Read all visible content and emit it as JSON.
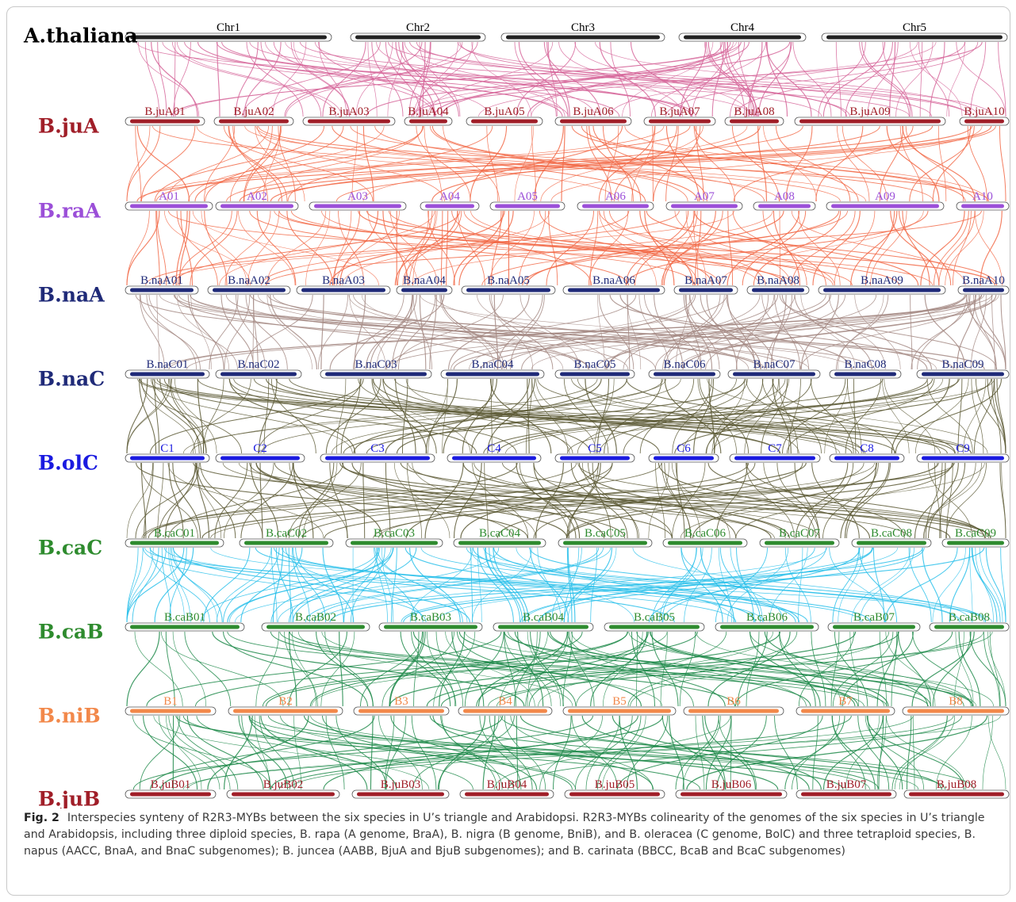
{
  "figure": {
    "caption_label": "Fig. 2",
    "caption_text": "Interspecies synteny of R2R3-MYBs between the six species in U’s triangle and Arabidopsi. R2R3-MYBs colinearity of the genomes of the six species in U’s triangle and Arabidopsis, including three diploid species, B. rapa (A genome, BraA), B. nigra (B genome, BniB), and B. oleracea (C genome, BolC) and three tetraploid species, B. napus (AACC, BnaA, and BnaC subgenomes); B. juncea (AABB, BjuA and BjuB subgenomes); and B. carinata (BBCC, BcaB and BcaC subgenomes)"
  },
  "rows": [
    {
      "label": "A.thaliana",
      "color": "#000000",
      "bar_color": "#222222",
      "chromosomes": [
        {
          "name": "Chr1",
          "start": 158,
          "end": 418
        },
        {
          "name": "Chr2",
          "start": 442,
          "end": 612
        },
        {
          "name": "Chr3",
          "start": 632,
          "end": 838
        },
        {
          "name": "Chr4",
          "start": 856,
          "end": 1016
        },
        {
          "name": "Chr5",
          "start": 1036,
          "end": 1270
        }
      ]
    },
    {
      "label": "B.juA",
      "color": "#a01e28",
      "bar_color": "#a01e28",
      "chromosomes": [
        {
          "name": "B.juA01",
          "start": 158,
          "end": 258
        },
        {
          "name": "B.juA02",
          "start": 270,
          "end": 370
        },
        {
          "name": "B.juA03",
          "start": 382,
          "end": 498
        },
        {
          "name": "B.juA04",
          "start": 510,
          "end": 570
        },
        {
          "name": "B.juA05",
          "start": 588,
          "end": 684
        },
        {
          "name": "B.juA06",
          "start": 700,
          "end": 796
        },
        {
          "name": "B.juA07",
          "start": 812,
          "end": 902
        },
        {
          "name": "B.juA08",
          "start": 914,
          "end": 988
        },
        {
          "name": "B.juA09",
          "start": 1002,
          "end": 1192
        },
        {
          "name": "B.juA10",
          "start": 1210,
          "end": 1272
        }
      ]
    },
    {
      "label": "B.raA",
      "color": "#9b4fd8",
      "bar_color": "#9b4fd8",
      "chromosomes": [
        {
          "name": "A01",
          "start": 158,
          "end": 268
        },
        {
          "name": "A02",
          "start": 272,
          "end": 376
        },
        {
          "name": "A03",
          "start": 390,
          "end": 512
        },
        {
          "name": "A04",
          "start": 530,
          "end": 604
        },
        {
          "name": "A05",
          "start": 618,
          "end": 712
        },
        {
          "name": "A06",
          "start": 728,
          "end": 824
        },
        {
          "name": "A07",
          "start": 840,
          "end": 936
        },
        {
          "name": "A08",
          "start": 950,
          "end": 1028
        },
        {
          "name": "A09",
          "start": 1042,
          "end": 1190
        },
        {
          "name": "A10",
          "start": 1206,
          "end": 1272
        }
      ]
    },
    {
      "label": "B.naA",
      "color": "#1f2a78",
      "bar_color": "#1f2a78",
      "chromosomes": [
        {
          "name": "B.naA01",
          "start": 158,
          "end": 250
        },
        {
          "name": "B.naA02",
          "start": 262,
          "end": 366
        },
        {
          "name": "B.naA03",
          "start": 374,
          "end": 492
        },
        {
          "name": "B.naA04",
          "start": 500,
          "end": 570
        },
        {
          "name": "B.naA05",
          "start": 582,
          "end": 700
        },
        {
          "name": "B.naA06",
          "start": 710,
          "end": 838
        },
        {
          "name": "B.naA07",
          "start": 850,
          "end": 930
        },
        {
          "name": "B.naA08",
          "start": 942,
          "end": 1020
        },
        {
          "name": "B.naA09",
          "start": 1032,
          "end": 1192
        },
        {
          "name": "B.naA10",
          "start": 1208,
          "end": 1272
        }
      ]
    },
    {
      "label": "B.naC",
      "color": "#1f2a78",
      "bar_color": "#1f2a78",
      "chromosomes": [
        {
          "name": "B.naC01",
          "start": 158,
          "end": 264
        },
        {
          "name": "B.naC02",
          "start": 272,
          "end": 380
        },
        {
          "name": "B.naC03",
          "start": 404,
          "end": 544
        },
        {
          "name": "B.naC04",
          "start": 556,
          "end": 686
        },
        {
          "name": "B.naC05",
          "start": 700,
          "end": 800
        },
        {
          "name": "B.naC06",
          "start": 818,
          "end": 908
        },
        {
          "name": "B.naC07",
          "start": 918,
          "end": 1034
        },
        {
          "name": "B.naC08",
          "start": 1046,
          "end": 1136
        },
        {
          "name": "B.naC09",
          "start": 1156,
          "end": 1272
        }
      ]
    },
    {
      "label": "B.olC",
      "color": "#1a1ae0",
      "bar_color": "#1a1ae0",
      "chromosomes": [
        {
          "name": "C1",
          "start": 158,
          "end": 264
        },
        {
          "name": "C2",
          "start": 272,
          "end": 384
        },
        {
          "name": "C3",
          "start": 404,
          "end": 548
        },
        {
          "name": "C4",
          "start": 564,
          "end": 682
        },
        {
          "name": "C5",
          "start": 700,
          "end": 800
        },
        {
          "name": "C6",
          "start": 818,
          "end": 906
        },
        {
          "name": "C7",
          "start": 920,
          "end": 1034
        },
        {
          "name": "C8",
          "start": 1046,
          "end": 1140
        },
        {
          "name": "C9",
          "start": 1156,
          "end": 1272
        }
      ]
    },
    {
      "label": "B.caC",
      "color": "#2e8b2e",
      "bar_color": "#2e8b2e",
      "chromosomes": [
        {
          "name": "B.caC01",
          "start": 158,
          "end": 282
        },
        {
          "name": "B.caC02",
          "start": 302,
          "end": 420
        },
        {
          "name": "B.caC03",
          "start": 436,
          "end": 558
        },
        {
          "name": "B.caC04",
          "start": 572,
          "end": 688
        },
        {
          "name": "B.caC05",
          "start": 704,
          "end": 822
        },
        {
          "name": "B.caC06",
          "start": 836,
          "end": 942
        },
        {
          "name": "B.caC07",
          "start": 958,
          "end": 1058
        },
        {
          "name": "B.caC08",
          "start": 1074,
          "end": 1174
        },
        {
          "name": "B.caC09",
          "start": 1188,
          "end": 1272
        }
      ]
    },
    {
      "label": "B.caB",
      "color": "#2e8b2e",
      "bar_color": "#2e8b2e",
      "chromosomes": [
        {
          "name": "B.caB01",
          "start": 158,
          "end": 308
        },
        {
          "name": "B.caB02",
          "start": 330,
          "end": 466
        },
        {
          "name": "B.caB03",
          "start": 478,
          "end": 608
        },
        {
          "name": "B.caB04",
          "start": 622,
          "end": 748
        },
        {
          "name": "B.caB05",
          "start": 762,
          "end": 888
        },
        {
          "name": "B.caB06",
          "start": 902,
          "end": 1032
        },
        {
          "name": "B.caB07",
          "start": 1044,
          "end": 1160
        },
        {
          "name": "B.caB08",
          "start": 1172,
          "end": 1272
        }
      ]
    },
    {
      "label": "B.niB",
      "color": "#f2884a",
      "bar_color": "#f2884a",
      "chromosomes": [
        {
          "name": "B1",
          "start": 158,
          "end": 272
        },
        {
          "name": "B2",
          "start": 288,
          "end": 432
        },
        {
          "name": "B3",
          "start": 446,
          "end": 566
        },
        {
          "name": "B4",
          "start": 578,
          "end": 696
        },
        {
          "name": "B5",
          "start": 710,
          "end": 852
        },
        {
          "name": "B6",
          "start": 862,
          "end": 988
        },
        {
          "name": "B7",
          "start": 1004,
          "end": 1128
        },
        {
          "name": "B8",
          "start": 1138,
          "end": 1272
        }
      ]
    },
    {
      "label": "B.juB",
      "color": "#a01e28",
      "bar_color": "#a01e28",
      "chromosomes": [
        {
          "name": "B.juB01",
          "start": 158,
          "end": 272
        },
        {
          "name": "B.juB02",
          "start": 286,
          "end": 428
        },
        {
          "name": "B.juB03",
          "start": 444,
          "end": 566
        },
        {
          "name": "B.juB04",
          "start": 580,
          "end": 698
        },
        {
          "name": "B.juB05",
          "start": 712,
          "end": 838
        },
        {
          "name": "B.juB06",
          "start": 852,
          "end": 992
        },
        {
          "name": "B.juB07",
          "start": 1004,
          "end": 1130
        },
        {
          "name": "B.juB08",
          "start": 1140,
          "end": 1272
        }
      ]
    }
  ],
  "link_colors": [
    "#d6669a",
    "#f26a48",
    "#f26a48",
    "#a58a84",
    "#5d5a36",
    "#5d5a36",
    "#29c0ea",
    "#1e8a4a",
    "#1e8a4a"
  ],
  "link_counts": [
    120,
    95,
    120,
    130,
    130,
    120,
    130,
    120,
    110
  ]
}
